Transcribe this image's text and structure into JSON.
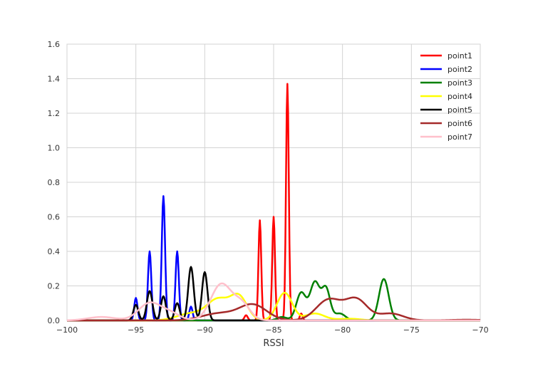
{
  "chart_data": {
    "type": "line",
    "title": "",
    "xlabel": "RSSI",
    "ylabel": "",
    "xlim": [
      -100,
      -70
    ],
    "ylim": [
      0,
      1.6
    ],
    "xticks": [
      "−100",
      "−95",
      "−90",
      "−85",
      "−80",
      "−75",
      "−70"
    ],
    "xtick_values": [
      -100,
      -95,
      -90,
      -85,
      -80,
      -75,
      -70
    ],
    "yticks": [
      "0.0",
      "0.2",
      "0.4",
      "0.6",
      "0.8",
      "1.0",
      "1.2",
      "1.4",
      "1.6"
    ],
    "ytick_values": [
      0,
      0.2,
      0.4,
      0.6,
      0.8,
      1.0,
      1.2,
      1.4,
      1.6
    ],
    "grid": true,
    "legend_position": "top-right",
    "series": [
      {
        "name": "point1",
        "color": "#ff0000",
        "peaks": [
          [
            -87,
            0.03,
            0.12
          ],
          [
            -86,
            0.58,
            0.1
          ],
          [
            -85,
            0.6,
            0.1
          ],
          [
            -84,
            1.37,
            0.1
          ],
          [
            -83,
            0.04,
            0.1
          ]
        ]
      },
      {
        "name": "point2",
        "color": "#0000ff",
        "peaks": [
          [
            -95,
            0.13,
            0.12
          ],
          [
            -94,
            0.4,
            0.12
          ],
          [
            -93,
            0.72,
            0.12
          ],
          [
            -92,
            0.4,
            0.12
          ],
          [
            -91,
            0.08,
            0.12
          ]
        ]
      },
      {
        "name": "point3",
        "color": "#008000",
        "peaks": [
          [
            -84.4,
            0.02,
            0.35
          ],
          [
            -83,
            0.16,
            0.35
          ],
          [
            -82,
            0.22,
            0.35
          ],
          [
            -81.2,
            0.18,
            0.3
          ],
          [
            -80.2,
            0.04,
            0.4
          ],
          [
            -77,
            0.24,
            0.35
          ]
        ]
      },
      {
        "name": "point4",
        "color": "#ffff00",
        "peaks": [
          [
            -91,
            0.04,
            1.0
          ],
          [
            -89,
            0.12,
            0.8
          ],
          [
            -87.5,
            0.13,
            0.6
          ],
          [
            -84.2,
            0.16,
            0.55
          ],
          [
            -82,
            0.04,
            0.7
          ],
          [
            -79.5,
            0.01,
            0.8
          ]
        ]
      },
      {
        "name": "point5",
        "color": "#000000",
        "peaks": [
          [
            -95,
            0.09,
            0.18
          ],
          [
            -94,
            0.17,
            0.2
          ],
          [
            -93,
            0.14,
            0.18
          ],
          [
            -92,
            0.1,
            0.18
          ],
          [
            -91,
            0.31,
            0.2
          ],
          [
            -90,
            0.28,
            0.2
          ]
        ]
      },
      {
        "name": "point6",
        "color": "#a52a2a",
        "peaks": [
          [
            -89,
            0.04,
            1.2
          ],
          [
            -86.5,
            0.09,
            1.0
          ],
          [
            -81,
            0.12,
            0.9
          ],
          [
            -79,
            0.12,
            0.8
          ],
          [
            -76.5,
            0.04,
            0.9
          ],
          [
            -71,
            0.004,
            1.2
          ]
        ]
      },
      {
        "name": "point7",
        "color": "#ffc0cb",
        "peaks": [
          [
            -97.5,
            0.02,
            1.0
          ],
          [
            -94,
            0.1,
            0.8
          ],
          [
            -92.5,
            0.04,
            0.7
          ],
          [
            -88.8,
            0.21,
            0.75
          ],
          [
            -87.3,
            0.09,
            0.6
          ]
        ]
      }
    ]
  }
}
